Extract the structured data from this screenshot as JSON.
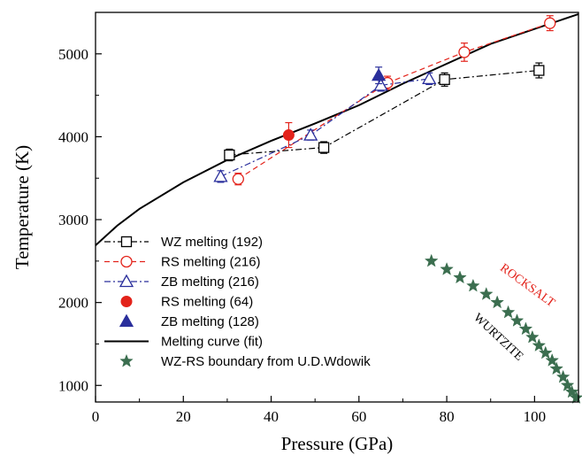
{
  "chart_data": {
    "type": "scatter",
    "xlabel": "Pressure (GPa)",
    "ylabel": "Temperature (K)",
    "xlim": [
      0,
      110
    ],
    "ylim": [
      800,
      5500
    ],
    "xticks": [
      "0",
      "20",
      "40",
      "60",
      "80",
      "100"
    ],
    "yticks": [
      "1000",
      "2000",
      "3000",
      "4000",
      "5000"
    ],
    "grid": false,
    "legend_placement": "bottom-left",
    "series": [
      {
        "name": "WZ melting (192)",
        "marker": "open-square",
        "line": "dash-dot",
        "color": "#000000",
        "x": [
          30.5,
          52,
          79.5,
          101
        ],
        "y": [
          3780,
          3870,
          4690,
          4800
        ],
        "err": [
          70,
          70,
          80,
          90
        ]
      },
      {
        "name": "RS melting (216)",
        "marker": "open-circle",
        "line": "dashed",
        "color": "#e3231b",
        "x": [
          32.5,
          66.5,
          84,
          103.5
        ],
        "y": [
          3490,
          4650,
          5020,
          5370
        ],
        "err": [
          70,
          80,
          110,
          90
        ]
      },
      {
        "name": "ZB melting (216)",
        "marker": "open-triangle",
        "line": "dash-dot",
        "color": "#2a2f9c",
        "x": [
          28.5,
          49,
          65,
          76
        ],
        "y": [
          3520,
          4020,
          4620,
          4700
        ],
        "err": [
          70,
          60,
          70,
          70
        ]
      },
      {
        "name": "RS melting (64)",
        "marker": "filled-circle",
        "line": "none",
        "color": "#e3231b",
        "x": [
          44
        ],
        "y": [
          4020
        ],
        "err": [
          150
        ]
      },
      {
        "name": "ZB melting (128)",
        "marker": "filled-triangle",
        "line": "none",
        "color": "#2a2f9c",
        "x": [
          64.5
        ],
        "y": [
          4740
        ],
        "err": [
          100
        ]
      },
      {
        "name": "Melting curve (fit)",
        "marker": "none",
        "line": "solid",
        "color": "#000000",
        "x": [
          0,
          5,
          10,
          20,
          30,
          40,
          50,
          60,
          70,
          80,
          90,
          100,
          110
        ],
        "y": [
          2690,
          2930,
          3130,
          3450,
          3720,
          3950,
          4160,
          4380,
          4640,
          4880,
          5120,
          5300,
          5480
        ]
      },
      {
        "name": "WZ-RS boundary  from U.D.Wdowik",
        "marker": "star",
        "line": "none",
        "color": "#3b6e4f",
        "x": [
          76.5,
          80,
          83,
          86,
          89,
          91.5,
          94,
          96,
          98,
          99.5,
          101,
          102.5,
          104,
          105,
          106.5,
          107.5,
          108.5,
          109.5
        ],
        "y": [
          2500,
          2400,
          2300,
          2200,
          2100,
          2000,
          1880,
          1780,
          1680,
          1580,
          1480,
          1390,
          1300,
          1200,
          1100,
          1000,
          920,
          850
        ]
      }
    ],
    "annotations": [
      {
        "text": "ROCKSALT",
        "color": "#e3231b",
        "x": 92,
        "y": 2400
      },
      {
        "text": "WURTZITE",
        "color": "#000000",
        "x": 86,
        "y": 1810
      }
    ]
  }
}
